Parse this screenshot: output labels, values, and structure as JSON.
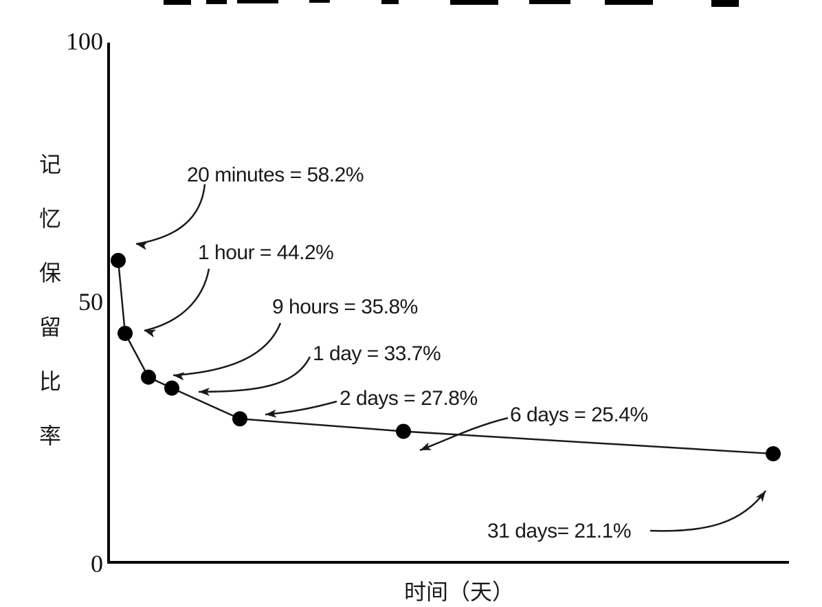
{
  "chart_data": {
    "type": "line",
    "xlabel": "时间（天）",
    "ylabel": "记忆保留比率",
    "ylim": [
      0,
      100
    ],
    "yticks": [
      "0",
      "50",
      "100"
    ],
    "grid": false,
    "points": [
      {
        "x": 0.014,
        "y": 58.2,
        "label": "20 minutes = 58.2%"
      },
      {
        "x": 0.042,
        "y": 44.2,
        "label": "1 hour = 44.2%"
      },
      {
        "x": 0.375,
        "y": 35.8,
        "label": "9 hours = 35.8%"
      },
      {
        "x": 1,
        "y": 33.7,
        "label": "1 day = 33.7%"
      },
      {
        "x": 2,
        "y": 27.8,
        "label": "2 days = 27.8%"
      },
      {
        "x": 6,
        "y": 25.4,
        "label": "6 days = 25.4%"
      },
      {
        "x": 31,
        "y": 21.1,
        "label": "31 days= 21.1%"
      }
    ],
    "colors": {
      "line": "#1a1a1a",
      "marker": "#000000",
      "axis": "#000000"
    }
  }
}
